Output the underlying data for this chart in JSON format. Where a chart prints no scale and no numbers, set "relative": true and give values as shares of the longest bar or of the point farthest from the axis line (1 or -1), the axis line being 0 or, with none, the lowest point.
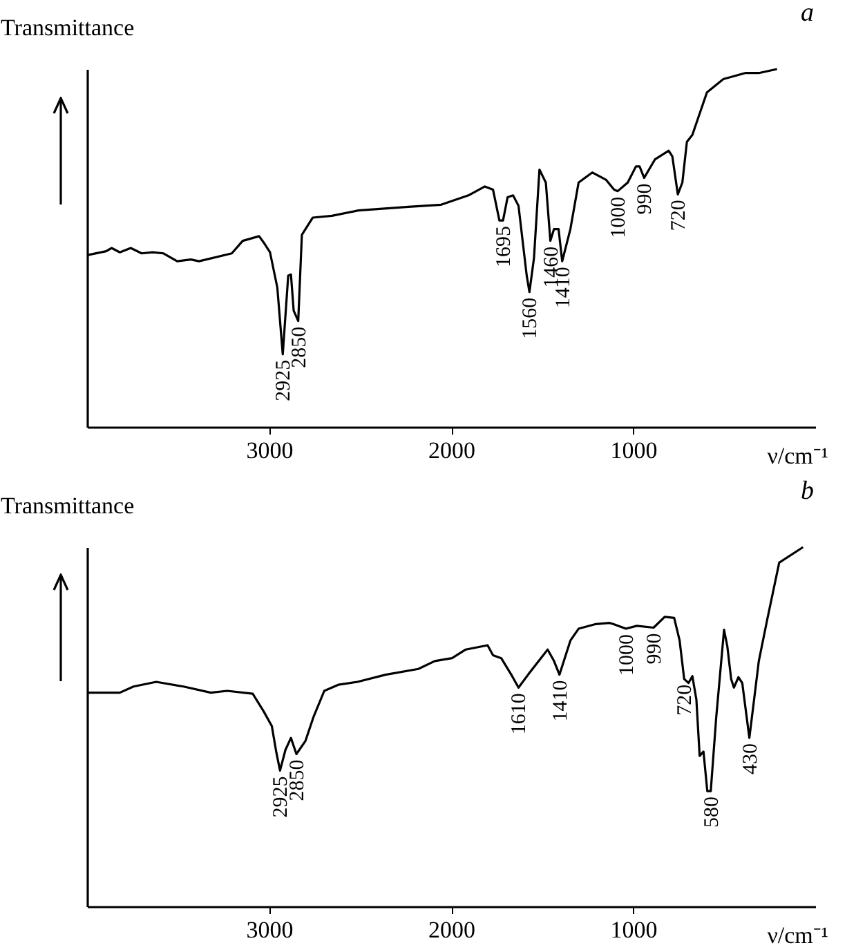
{
  "chart_data": [
    {
      "type": "line",
      "title": "a",
      "xlabel": "ν/cm⁻¹",
      "ylabel": "Transmittance",
      "relative": true,
      "xlim": [
        4000,
        0
      ],
      "xticks": [
        3000,
        2000,
        1000
      ],
      "grid": false,
      "x": [
        4000,
        3895,
        3865,
        3820,
        3760,
        3700,
        3640,
        3580,
        3505,
        3430,
        3385,
        3205,
        3145,
        3055,
        3025,
        2995,
        2955,
        2925,
        2895,
        2880,
        2865,
        2840,
        2820,
        2760,
        2655,
        2510,
        2235,
        2055,
        1905,
        1815,
        1770,
        1735,
        1715,
        1690,
        1660,
        1630,
        1585,
        1570,
        1545,
        1515,
        1480,
        1455,
        1435,
        1410,
        1390,
        1345,
        1300,
        1225,
        1150,
        1105,
        1085,
        1030,
        985,
        965,
        940,
        880,
        805,
        785,
        755,
        730,
        705,
        675,
        595,
        505,
        385,
        310,
        210
      ],
      "series": [
        {
          "color": "#000000",
          "values": [
            0.48,
            0.491,
            0.5,
            0.488,
            0.5,
            0.485,
            0.488,
            0.485,
            0.463,
            0.468,
            0.463,
            0.485,
            0.52,
            0.533,
            0.512,
            0.488,
            0.39,
            0.203,
            0.423,
            0.426,
            0.325,
            0.296,
            0.537,
            0.585,
            0.59,
            0.605,
            0.615,
            0.621,
            0.647,
            0.672,
            0.663,
            0.577,
            0.577,
            0.642,
            0.647,
            0.618,
            0.423,
            0.377,
            0.472,
            0.719,
            0.683,
            0.52,
            0.553,
            0.553,
            0.463,
            0.553,
            0.683,
            0.711,
            0.691,
            0.663,
            0.659,
            0.683,
            0.728,
            0.728,
            0.696,
            0.748,
            0.772,
            0.756,
            0.65,
            0.683,
            0.797,
            0.816,
            0.935,
            0.972,
            0.989,
            0.989,
            1.0
          ]
        }
      ],
      "annotations": [
        {
          "text": "2925",
          "x": 2925,
          "y": 0.203
        },
        {
          "text": "2850",
          "x": 2840,
          "y": 0.296
        },
        {
          "text": "1695",
          "x": 1715,
          "y": 0.577
        },
        {
          "text": "1560",
          "x": 1570,
          "y": 0.377
        },
        {
          "text": "1460",
          "x": 1455,
          "y": 0.52
        },
        {
          "text": "1410",
          "x": 1390,
          "y": 0.463
        },
        {
          "text": "1000",
          "x": 1085,
          "y": 0.659
        },
        {
          "text": "990",
          "x": 940,
          "y": 0.696
        },
        {
          "text": "720",
          "x": 755,
          "y": 0.65
        }
      ]
    },
    {
      "type": "line",
      "title": "b",
      "xlabel": "ν/cm⁻¹",
      "ylabel": "Transmittance",
      "relative": true,
      "xlim": [
        4000,
        0
      ],
      "xticks": [
        3000,
        2000,
        1000
      ],
      "grid": false,
      "x": [
        4000,
        3820,
        3745,
        3620,
        3470,
        3320,
        3230,
        3090,
        3030,
        2985,
        2960,
        2940,
        2910,
        2880,
        2850,
        2800,
        2757,
        2697,
        2620,
        2515,
        2360,
        2180,
        2090,
        1995,
        1920,
        1800,
        1770,
        1725,
        1665,
        1630,
        1570,
        1470,
        1435,
        1405,
        1345,
        1300,
        1205,
        1130,
        1110,
        1040,
        980,
        888,
        827,
        775,
        745,
        720,
        696,
        675,
        653,
        635,
        614,
        593,
        574,
        544,
        501,
        483,
        462,
        447,
        422,
        401,
        362,
        340,
        310,
        264,
        198,
        67
      ],
      "series": [
        {
          "color": "#000000",
          "values": [
            0.595,
            0.595,
            0.612,
            0.625,
            0.612,
            0.595,
            0.6,
            0.592,
            0.543,
            0.502,
            0.428,
            0.378,
            0.436,
            0.469,
            0.424,
            0.461,
            0.526,
            0.6,
            0.617,
            0.625,
            0.645,
            0.661,
            0.683,
            0.691,
            0.715,
            0.727,
            0.699,
            0.691,
            0.641,
            0.609,
            0.65,
            0.715,
            0.683,
            0.645,
            0.74,
            0.773,
            0.786,
            0.789,
            0.786,
            0.773,
            0.781,
            0.776,
            0.806,
            0.803,
            0.74,
            0.633,
            0.622,
            0.641,
            0.576,
            0.419,
            0.431,
            0.321,
            0.321,
            0.526,
            0.77,
            0.724,
            0.633,
            0.609,
            0.638,
            0.622,
            0.469,
            0.559,
            0.683,
            0.798,
            0.957,
            1.0
          ]
        }
      ],
      "annotations": [
        {
          "text": "2925",
          "x": 2940,
          "y": 0.378
        },
        {
          "text": "2850",
          "x": 2850,
          "y": 0.424
        },
        {
          "text": "1610",
          "x": 1630,
          "y": 0.609
        },
        {
          "text": "1410",
          "x": 1405,
          "y": 0.645
        },
        {
          "text": "1000",
          "x": 1040,
          "y": 0.773
        },
        {
          "text": "990",
          "x": 888,
          "y": 0.776
        },
        {
          "text": "720",
          "x": 720,
          "y": 0.633
        },
        {
          "text": "580",
          "x": 574,
          "y": 0.321
        },
        {
          "text": "430",
          "x": 362,
          "y": 0.469
        }
      ]
    }
  ]
}
